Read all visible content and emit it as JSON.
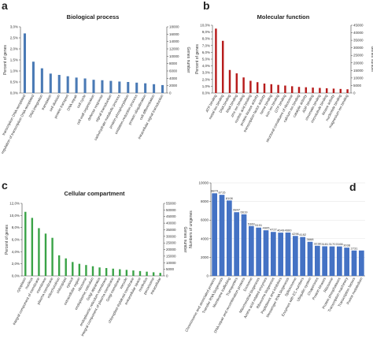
{
  "panel_letters": [
    "a",
    "b",
    "c",
    "d"
  ],
  "colors": {
    "a": "#4a7ab5",
    "b": "#b71c1c",
    "c": "#3aa347",
    "d": "#4472c4"
  },
  "chart_data": [
    {
      "type": "bar",
      "letter": "a",
      "title": "Biological process",
      "ylabel": "Percent of genes",
      "y2label": "Genes number",
      "ylim": [
        0,
        3.0
      ],
      "yticks": [
        "0,0%",
        "0,5%",
        "1,0%",
        "1,5%",
        "2,0%",
        "2,5%",
        "3,0%"
      ],
      "y2ticks": [
        "0",
        "2000",
        "4000",
        "6000",
        "8000",
        "10000",
        "12000",
        "14000",
        "16000",
        "18000"
      ],
      "categories": [
        "transcription DNA-templated",
        "regulation of transcription DNA-templated",
        "DNA integration",
        "translation",
        "cell division",
        "protein transport",
        "DNA repair",
        "cell cycle",
        "cell wall organization",
        "defense response",
        "signal transduction",
        "carbohydrate metabolic process",
        "protein phosphorylation",
        "oxidation-reduction process",
        "protein ubiquitination",
        "cell differentiation",
        "intracellular signal transduction"
      ],
      "values": [
        2.7,
        1.42,
        1.12,
        0.88,
        0.82,
        0.76,
        0.7,
        0.66,
        0.6,
        0.58,
        0.55,
        0.52,
        0.5,
        0.47,
        0.44,
        0.4,
        0.36
      ]
    },
    {
      "type": "bar",
      "letter": "b",
      "title": "Molecular function",
      "ylabel": "Percent of genes",
      "y2label": "Genes number",
      "ylim": [
        0,
        10.0
      ],
      "yticks": [
        "0,0%",
        "1,0%",
        "2,0%",
        "3,0%",
        "4,0%",
        "5,0%",
        "6,0%",
        "7,0%",
        "8,0%",
        "9,0%",
        "10,0%"
      ],
      "y2ticks": [
        "0",
        "5000",
        "10000",
        "15000",
        "20000",
        "25000",
        "30000",
        "35000",
        "40000",
        "45000"
      ],
      "categories": [
        "ATP binding",
        "metal ion binding",
        "DNA binding",
        "RNA binding",
        "zinc ion binding",
        "nucleic acid binding",
        "protein kinase activity",
        "transcription factor activity",
        "heme binding",
        "iron ion binding",
        "GTP binding",
        "structural constituent of ribosome",
        "calcium ion binding",
        "catalytic activity",
        "ADP binding",
        "chromatin binding",
        "microtubule binding",
        "kinase activity",
        "nucleotide binding",
        "magnesium ion binding"
      ],
      "values": [
        9.5,
        7.7,
        3.4,
        2.9,
        2.3,
        1.8,
        1.6,
        1.4,
        1.3,
        1.2,
        1.1,
        1.0,
        0.9,
        0.85,
        0.8,
        0.75,
        0.7,
        0.65,
        0.6,
        0.55
      ]
    },
    {
      "type": "bar",
      "letter": "c",
      "title": "Cellular compartment",
      "ylabel": "Percent of genes",
      "y2label": "Genes number",
      "ylim": [
        0,
        12.0
      ],
      "yticks": [
        "0,0%",
        "2,0%",
        "4,0%",
        "6,0%",
        "8,0%",
        "10,0%",
        "12,0%"
      ],
      "y2ticks": [
        "0",
        "5000",
        "10000",
        "15000",
        "20000",
        "25000",
        "30000",
        "35000",
        "40000",
        "45000",
        "50000",
        "55000"
      ],
      "categories": [
        "cytoplasm",
        "nucleus",
        "integral component of membrane",
        "membrane",
        "plasma membrane",
        "mitochondrion",
        "chloroplast",
        "cytosol",
        "extracellular region",
        "ribosome",
        "endoplasmic reticulum",
        "Golgi apparatus",
        "endoplasmic reticulum membrane",
        "integral component of plasma membrane",
        "Golgi membrane",
        "vacuole",
        "chloroplast thylakoid membrane",
        "extracellular space",
        "nucleolus",
        "peroxisome",
        "intracellular"
      ],
      "values": [
        10.6,
        9.6,
        7.9,
        7.0,
        6.3,
        3.4,
        2.9,
        2.3,
        2.0,
        1.8,
        1.6,
        1.4,
        1.3,
        1.2,
        1.1,
        1.0,
        0.9,
        0.8,
        0.7,
        0.6,
        0.5
      ]
    },
    {
      "type": "bar",
      "letter": "d",
      "title": "",
      "ylabel": "Numbers of unigenes",
      "ylim": [
        0,
        10000
      ],
      "yticks": [
        "0",
        "2000",
        "4000",
        "6000",
        "8000",
        "10000"
      ],
      "categories": [
        "Chromosome and associated proteins",
        "Transfer RNA biogenesis",
        "Membrane trafficking",
        "Transporters",
        "DNA repair and recombination proteins",
        "Exosome",
        "Mitochondrial biogenesis",
        "Amino acid related enzymes",
        "Ribosome biogenesis",
        "Peptidases and inhibitors",
        "Messenger RNA biogenesis",
        "Spliceosome",
        "Enzymes with EC numbers",
        "Ubiquitin system",
        "Chaperones",
        "Protein kinases",
        "Ribosome",
        "Protein phosphatases",
        "Transcription machinery",
        "Transcription factors",
        "Purine metabolism"
      ],
      "values": [
        8879,
        8715,
        8108,
        6847,
        6619,
        5360,
        5191,
        4905,
        4727,
        4649,
        4660,
        4296,
        4182,
        3668,
        3238,
        3181,
        3170,
        3166,
        3038,
        2731,
        2731
      ],
      "data_labels": [
        "8879",
        "8715",
        "8108",
        "6847",
        "6619",
        "5360",
        "5191",
        "4905",
        "4727",
        "4649",
        "4660",
        "4296",
        "4182",
        "3668",
        "3238",
        "3181",
        "3170",
        "3166",
        "3038",
        "2731",
        ""
      ]
    }
  ]
}
